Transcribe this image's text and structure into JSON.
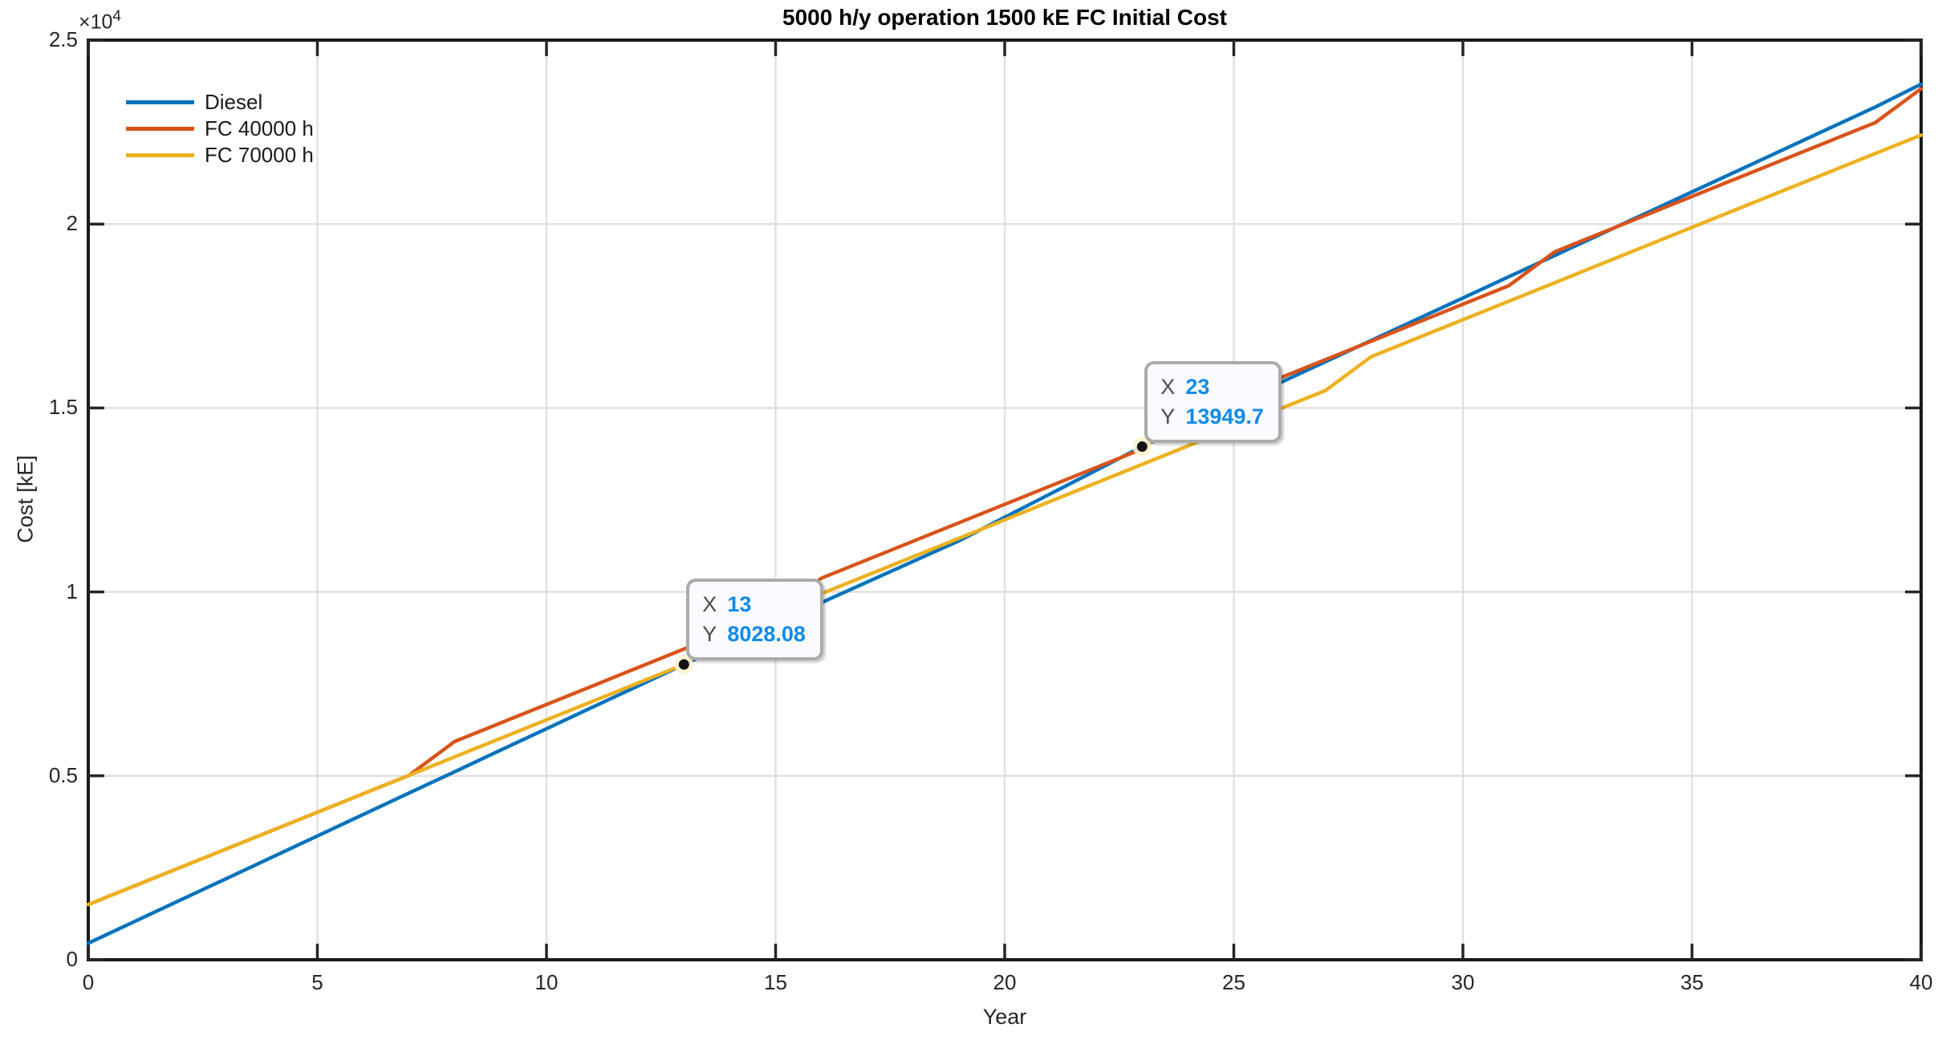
{
  "chart_data": {
    "type": "line",
    "title": "5000 h/y operation 1500 kE FC Initial Cost",
    "xlabel": "Year",
    "ylabel": "Cost [kE]",
    "y_axis_multiplier": {
      "base": "×10",
      "exponent": "4"
    },
    "xlim": [
      0,
      40
    ],
    "ylim": [
      0,
      25000
    ],
    "grid": true,
    "legend_position": "northwest",
    "legend_box": false,
    "x_ticks": {
      "values": [
        0,
        5,
        10,
        15,
        20,
        25,
        30,
        35,
        40
      ],
      "labels": [
        "0",
        "5",
        "10",
        "15",
        "20",
        "25",
        "30",
        "35",
        "40"
      ]
    },
    "y_ticks": {
      "values": [
        0,
        5000,
        10000,
        15000,
        20000,
        25000
      ],
      "labels": [
        "0",
        "0.5",
        "1",
        "1.5",
        "2",
        "2.5"
      ]
    },
    "x": [
      0,
      1,
      2,
      3,
      4,
      5,
      6,
      7,
      8,
      9,
      10,
      11,
      12,
      13,
      14,
      15,
      16,
      17,
      18,
      19,
      20,
      21,
      22,
      23,
      24,
      25,
      26,
      27,
      28,
      29,
      30,
      31,
      32,
      33,
      34,
      35,
      36,
      37,
      38,
      39,
      40
    ],
    "series": [
      {
        "name": "Diesel",
        "color": "#0072BD",
        "values": [
          450,
          1033,
          1616,
          2199,
          2782,
          3365,
          3948,
          4531,
          5114,
          5697,
          6280,
          6863,
          7446,
          8028.1,
          8588.1,
          9148.1,
          9708.1,
          10268.1,
          10828.1,
          11388.1,
          12028.1,
          12668.1,
          13308.1,
          13949.7,
          14526.7,
          15103.7,
          15680.7,
          16257.7,
          16834.7,
          17411.7,
          17988.7,
          18565.7,
          19142.7,
          19719.7,
          20296.7,
          20873.7,
          21450.7,
          22027.7,
          22604.7,
          23181.7,
          23801.7
        ]
      },
      {
        "name": "FC 40000 h",
        "color": "#D95319",
        "values": [
          1500,
          2002,
          2504,
          3006,
          3508,
          4010,
          4512,
          5014,
          5936,
          6438,
          6940,
          7442,
          7944,
          8446,
          8948,
          9450,
          10372,
          10874,
          11376,
          11878,
          12380,
          12882,
          13384,
          13886,
          14808,
          15310,
          15812,
          16314,
          16816,
          17318,
          17820,
          18322,
          19244,
          19746,
          20248,
          20750,
          21252,
          21754,
          22256,
          22758,
          23680
        ]
      },
      {
        "name": "FC 70000 h",
        "color": "#EDB120",
        "values": [
          1500,
          2002,
          2504,
          3006,
          3508,
          4010,
          4512,
          5014,
          5516,
          6018,
          6520,
          7022,
          7524,
          8026,
          8948,
          9450,
          9952,
          10454,
          10956,
          11458,
          11960,
          12462,
          12964,
          13466,
          13968,
          14470,
          14972,
          15474,
          16396,
          16898,
          17400,
          17902,
          18404,
          18906,
          19408,
          19910,
          20412,
          20914,
          21416,
          21918,
          22420
        ]
      }
    ],
    "datatips": [
      {
        "x": 13,
        "y": 8028.08,
        "x_label": "X",
        "x_text": "13",
        "y_label": "Y",
        "y_text": "8028.08"
      },
      {
        "x": 23,
        "y": 13949.7,
        "x_label": "X",
        "x_text": "23",
        "y_label": "Y",
        "y_text": "13949.7"
      }
    ]
  },
  "style_colors": {
    "axis": "#262626",
    "box": "#1a1a1a",
    "grid": "#E0E0E0",
    "datatip_value": "#0E8BE8",
    "datatip_border": "#ABABAB",
    "marker_dot": "#141414",
    "marker_halo": "#FBF3D0"
  }
}
